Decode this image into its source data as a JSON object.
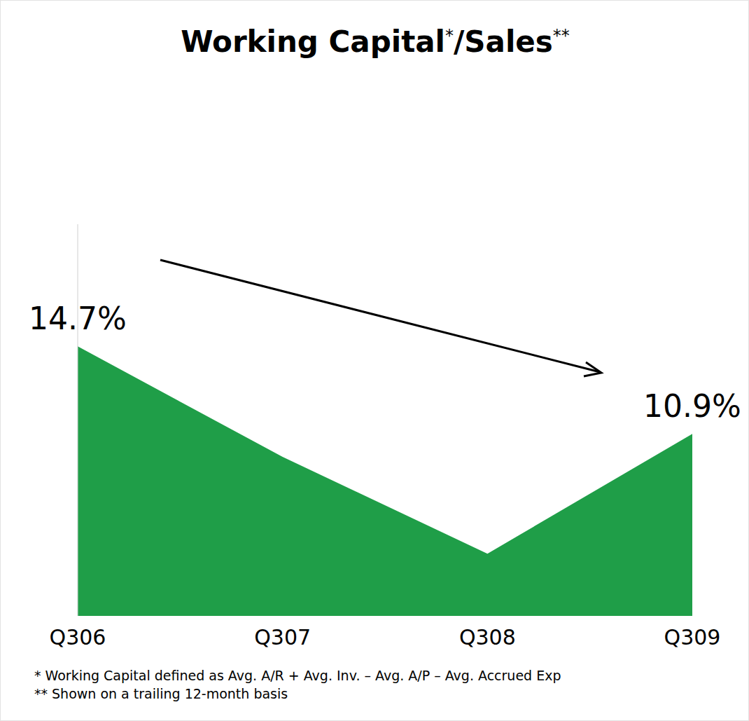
{
  "chart_data": {
    "type": "area",
    "title": "Working Capital*/Sales**",
    "categories": [
      "Q306",
      "Q307",
      "Q308",
      "Q309"
    ],
    "values": [
      14.7,
      9.9,
      5.7,
      10.9
    ],
    "value_labels": [
      "14.7%",
      null,
      null,
      "10.9%"
    ],
    "data_labels": true,
    "color": "#1f9e48",
    "ylim": [
      3,
      20
    ],
    "yticks": [],
    "tick_labels": "x",
    "grid": false,
    "notes": [
      "* Working Capital defined as Avg. A/R + Avg. Inv. – Avg. A/P – Avg. Accrued Exp",
      "** Shown on a trailing 12-month basis"
    ]
  }
}
